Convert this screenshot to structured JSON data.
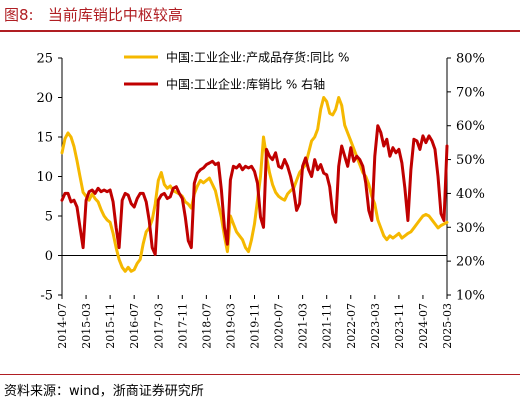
{
  "title": "图8:   当前库销比中枢较高",
  "source": "资料来源：wind，浙商证券研究所",
  "chart_data": {
    "type": "line",
    "title": "当前库销比中枢较高",
    "xlabel": "",
    "ylabel": "",
    "y_left": {
      "min": -5,
      "max": 25,
      "ticks": [
        -5,
        0,
        5,
        10,
        15,
        20,
        25
      ]
    },
    "y_right": {
      "min": 10,
      "max": 80,
      "ticks": [
        "10%",
        "20%",
        "30%",
        "40%",
        "50%",
        "60%",
        "70%",
        "80%"
      ]
    },
    "x_tick_labels": [
      "2014-07",
      "2015-03",
      "2015-11",
      "2016-07",
      "2017-03",
      "2017-11",
      "2018-07",
      "2019-03",
      "2019-11",
      "2020-07",
      "2021-03",
      "2021-11",
      "2022-07",
      "2023-03",
      "2023-11",
      "2024-07",
      "2025-03"
    ],
    "x_range": [
      "2014-07",
      "2025-03"
    ],
    "grid": false,
    "legend_position": "top-right",
    "series": [
      {
        "name": "中国:工业企业:产成品存货:同比 %",
        "axis": "left",
        "color": "#f5b800",
        "points": [
          [
            "2014-07",
            13.0
          ],
          [
            "2014-08",
            14.8
          ],
          [
            "2014-09",
            15.5
          ],
          [
            "2014-10",
            15.0
          ],
          [
            "2014-11",
            13.8
          ],
          [
            "2014-12",
            12.0
          ],
          [
            "2015-01",
            10.0
          ],
          [
            "2015-02",
            8.0
          ],
          [
            "2015-03",
            7.5
          ],
          [
            "2015-04",
            7.0
          ],
          [
            "2015-05",
            7.8
          ],
          [
            "2015-06",
            7.2
          ],
          [
            "2015-07",
            6.8
          ],
          [
            "2015-08",
            5.8
          ],
          [
            "2015-09",
            5.0
          ],
          [
            "2015-10",
            4.5
          ],
          [
            "2015-11",
            4.2
          ],
          [
            "2015-12",
            2.8
          ],
          [
            "2016-01",
            1.0
          ],
          [
            "2016-02",
            -0.5
          ],
          [
            "2016-03",
            -1.5
          ],
          [
            "2016-04",
            -2.0
          ],
          [
            "2016-05",
            -1.5
          ],
          [
            "2016-06",
            -2.0
          ],
          [
            "2016-07",
            -1.8
          ],
          [
            "2016-08",
            -1.0
          ],
          [
            "2016-09",
            -0.5
          ],
          [
            "2016-10",
            1.5
          ],
          [
            "2016-11",
            3.0
          ],
          [
            "2016-12",
            3.5
          ],
          [
            "2017-01",
            4.5
          ],
          [
            "2017-02",
            6.5
          ],
          [
            "2017-03",
            9.5
          ],
          [
            "2017-04",
            10.5
          ],
          [
            "2017-05",
            9.0
          ],
          [
            "2017-06",
            8.5
          ],
          [
            "2017-07",
            8.8
          ],
          [
            "2017-08",
            8.2
          ],
          [
            "2017-09",
            8.0
          ],
          [
            "2017-10",
            7.8
          ],
          [
            "2017-11",
            7.5
          ],
          [
            "2017-12",
            6.8
          ],
          [
            "2018-01",
            6.5
          ],
          [
            "2018-02",
            6.0
          ],
          [
            "2018-03",
            7.8
          ],
          [
            "2018-04",
            8.8
          ],
          [
            "2018-05",
            9.5
          ],
          [
            "2018-06",
            9.2
          ],
          [
            "2018-07",
            9.5
          ],
          [
            "2018-08",
            9.8
          ],
          [
            "2018-09",
            9.0
          ],
          [
            "2018-10",
            8.2
          ],
          [
            "2018-11",
            6.5
          ],
          [
            "2018-12",
            4.8
          ],
          [
            "2019-01",
            2.5
          ],
          [
            "2019-02",
            0.5
          ],
          [
            "2019-03",
            5.0
          ],
          [
            "2019-04",
            4.0
          ],
          [
            "2019-05",
            3.0
          ],
          [
            "2019-06",
            2.5
          ],
          [
            "2019-07",
            2.0
          ],
          [
            "2019-08",
            1.0
          ],
          [
            "2019-09",
            0.5
          ],
          [
            "2019-10",
            2.0
          ],
          [
            "2019-11",
            4.0
          ],
          [
            "2019-12",
            7.0
          ],
          [
            "2020-01",
            10.0
          ],
          [
            "2020-02",
            15.0
          ],
          [
            "2020-03",
            12.5
          ],
          [
            "2020-04",
            10.5
          ],
          [
            "2020-05",
            9.0
          ],
          [
            "2020-06",
            8.0
          ],
          [
            "2020-07",
            7.5
          ],
          [
            "2020-08",
            7.2
          ],
          [
            "2020-09",
            7.0
          ],
          [
            "2020-10",
            7.8
          ],
          [
            "2020-11",
            8.2
          ],
          [
            "2020-12",
            8.5
          ],
          [
            "2021-01",
            9.5
          ],
          [
            "2021-02",
            10.5
          ],
          [
            "2021-03",
            11.0
          ],
          [
            "2021-04",
            11.5
          ],
          [
            "2021-05",
            13.0
          ],
          [
            "2021-06",
            14.5
          ],
          [
            "2021-07",
            15.0
          ],
          [
            "2021-08",
            16.0
          ],
          [
            "2021-09",
            18.5
          ],
          [
            "2021-10",
            20.0
          ],
          [
            "2021-11",
            19.5
          ],
          [
            "2021-12",
            18.0
          ],
          [
            "2022-01",
            17.8
          ],
          [
            "2022-02",
            18.5
          ],
          [
            "2022-03",
            20.0
          ],
          [
            "2022-04",
            19.0
          ],
          [
            "2022-05",
            16.5
          ],
          [
            "2022-06",
            15.5
          ],
          [
            "2022-07",
            14.5
          ],
          [
            "2022-08",
            13.5
          ],
          [
            "2022-09",
            12.5
          ],
          [
            "2022-10",
            11.5
          ],
          [
            "2022-11",
            10.5
          ],
          [
            "2022-12",
            10.0
          ],
          [
            "2023-01",
            9.0
          ],
          [
            "2023-02",
            7.5
          ],
          [
            "2023-03",
            6.5
          ],
          [
            "2023-04",
            4.5
          ],
          [
            "2023-05",
            3.5
          ],
          [
            "2023-06",
            2.5
          ],
          [
            "2023-07",
            2.0
          ],
          [
            "2023-08",
            2.5
          ],
          [
            "2023-09",
            2.2
          ],
          [
            "2023-10",
            2.5
          ],
          [
            "2023-11",
            2.8
          ],
          [
            "2023-12",
            2.2
          ],
          [
            "2024-01",
            2.5
          ],
          [
            "2024-02",
            2.8
          ],
          [
            "2024-03",
            3.0
          ],
          [
            "2024-04",
            3.5
          ],
          [
            "2024-05",
            4.0
          ],
          [
            "2024-06",
            4.5
          ],
          [
            "2024-07",
            5.0
          ],
          [
            "2024-08",
            5.2
          ],
          [
            "2024-09",
            5.0
          ],
          [
            "2024-10",
            4.5
          ],
          [
            "2024-11",
            4.0
          ],
          [
            "2024-12",
            3.5
          ],
          [
            "2025-01",
            3.8
          ],
          [
            "2025-02",
            4.0
          ],
          [
            "2025-03",
            4.2
          ]
        ]
      },
      {
        "name": "中国:工业企业:库销比 % 右轴",
        "axis": "right",
        "color": "#c00000",
        "points": [
          [
            "2014-07",
            38.0
          ],
          [
            "2014-08",
            40.0
          ],
          [
            "2014-09",
            40.0
          ],
          [
            "2014-10",
            37.5
          ],
          [
            "2014-11",
            38.0
          ],
          [
            "2014-12",
            36.0
          ],
          [
            "2015-01",
            30.0
          ],
          [
            "2015-02",
            24.0
          ],
          [
            "2015-03",
            38.0
          ],
          [
            "2015-04",
            40.5
          ],
          [
            "2015-05",
            41.0
          ],
          [
            "2015-06",
            40.0
          ],
          [
            "2015-07",
            41.5
          ],
          [
            "2015-08",
            40.5
          ],
          [
            "2015-09",
            41.0
          ],
          [
            "2015-10",
            40.5
          ],
          [
            "2015-11",
            41.0
          ],
          [
            "2015-12",
            37.5
          ],
          [
            "2016-01",
            30.0
          ],
          [
            "2016-02",
            24.0
          ],
          [
            "2016-03",
            38.0
          ],
          [
            "2016-04",
            40.0
          ],
          [
            "2016-05",
            39.5
          ],
          [
            "2016-06",
            37.0
          ],
          [
            "2016-07",
            36.0
          ],
          [
            "2016-08",
            38.5
          ],
          [
            "2016-09",
            40.0
          ],
          [
            "2016-10",
            40.0
          ],
          [
            "2016-11",
            37.5
          ],
          [
            "2016-12",
            32.0
          ],
          [
            "2017-01",
            24.0
          ],
          [
            "2017-02",
            22.0
          ],
          [
            "2017-03",
            38.0
          ],
          [
            "2017-04",
            39.5
          ],
          [
            "2017-05",
            40.0
          ],
          [
            "2017-06",
            38.5
          ],
          [
            "2017-07",
            39.0
          ],
          [
            "2017-08",
            41.5
          ],
          [
            "2017-09",
            42.0
          ],
          [
            "2017-10",
            40.0
          ],
          [
            "2017-11",
            38.5
          ],
          [
            "2017-12",
            33.0
          ],
          [
            "2018-01",
            26.0
          ],
          [
            "2018-02",
            24.0
          ],
          [
            "2018-03",
            43.0
          ],
          [
            "2018-04",
            46.0
          ],
          [
            "2018-05",
            47.0
          ],
          [
            "2018-06",
            47.5
          ],
          [
            "2018-07",
            48.5
          ],
          [
            "2018-08",
            49.0
          ],
          [
            "2018-09",
            49.5
          ],
          [
            "2018-10",
            48.5
          ],
          [
            "2018-11",
            49.0
          ],
          [
            "2018-12",
            41.0
          ],
          [
            "2019-01",
            30.0
          ],
          [
            "2019-02",
            25.0
          ],
          [
            "2019-03",
            44.0
          ],
          [
            "2019-04",
            48.0
          ],
          [
            "2019-05",
            47.5
          ],
          [
            "2019-06",
            48.5
          ],
          [
            "2019-07",
            47.0
          ],
          [
            "2019-08",
            48.0
          ],
          [
            "2019-09",
            47.5
          ],
          [
            "2019-10",
            48.0
          ],
          [
            "2019-11",
            46.5
          ],
          [
            "2019-12",
            43.0
          ],
          [
            "2020-01",
            33.0
          ],
          [
            "2020-02",
            30.0
          ],
          [
            "2020-03",
            53.0
          ],
          [
            "2020-04",
            51.0
          ],
          [
            "2020-05",
            50.0
          ],
          [
            "2020-06",
            52.0
          ],
          [
            "2020-07",
            48.0
          ],
          [
            "2020-08",
            47.5
          ],
          [
            "2020-09",
            50.0
          ],
          [
            "2020-10",
            48.0
          ],
          [
            "2020-11",
            45.0
          ],
          [
            "2020-12",
            41.0
          ],
          [
            "2021-01",
            35.0
          ],
          [
            "2021-02",
            37.0
          ],
          [
            "2021-03",
            48.0
          ],
          [
            "2021-04",
            50.5
          ],
          [
            "2021-05",
            47.0
          ],
          [
            "2021-06",
            45.0
          ],
          [
            "2021-07",
            50.0
          ],
          [
            "2021-08",
            47.0
          ],
          [
            "2021-09",
            48.5
          ],
          [
            "2021-10",
            46.0
          ],
          [
            "2021-11",
            45.5
          ],
          [
            "2021-12",
            42.0
          ],
          [
            "2022-01",
            34.0
          ],
          [
            "2022-02",
            31.5
          ],
          [
            "2022-03",
            48.0
          ],
          [
            "2022-04",
            54.0
          ],
          [
            "2022-05",
            51.0
          ],
          [
            "2022-06",
            48.0
          ],
          [
            "2022-07",
            53.5
          ],
          [
            "2022-08",
            49.5
          ],
          [
            "2022-09",
            51.0
          ],
          [
            "2022-10",
            50.0
          ],
          [
            "2022-11",
            48.0
          ],
          [
            "2022-12",
            43.0
          ],
          [
            "2023-01",
            35.0
          ],
          [
            "2023-02",
            32.0
          ],
          [
            "2023-03",
            51.0
          ],
          [
            "2023-04",
            60.0
          ],
          [
            "2023-05",
            58.0
          ],
          [
            "2023-06",
            54.0
          ],
          [
            "2023-07",
            56.0
          ],
          [
            "2023-08",
            51.0
          ],
          [
            "2023-09",
            53.5
          ],
          [
            "2023-10",
            52.0
          ],
          [
            "2023-11",
            53.0
          ],
          [
            "2023-12",
            49.0
          ],
          [
            "2024-01",
            41.5
          ],
          [
            "2024-02",
            32.0
          ],
          [
            "2024-03",
            47.0
          ],
          [
            "2024-04",
            56.0
          ],
          [
            "2024-05",
            55.5
          ],
          [
            "2024-06",
            53.0
          ],
          [
            "2024-07",
            57.0
          ],
          [
            "2024-08",
            55.0
          ],
          [
            "2024-09",
            57.0
          ],
          [
            "2024-10",
            55.5
          ],
          [
            "2024-11",
            53.0
          ],
          [
            "2024-12",
            45.0
          ],
          [
            "2025-01",
            34.0
          ],
          [
            "2025-02",
            32.0
          ],
          [
            "2025-03",
            54.0
          ]
        ]
      }
    ]
  }
}
